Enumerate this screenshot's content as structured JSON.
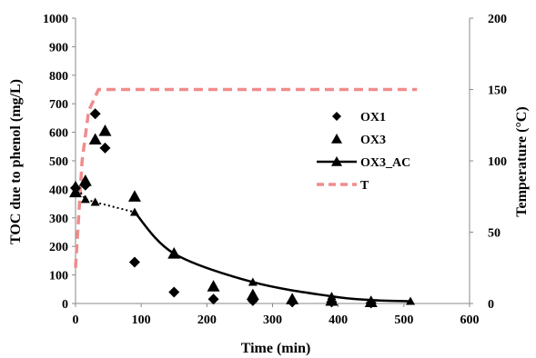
{
  "chart_data": {
    "type": "scatter",
    "x_axis": {
      "label": "Time (min)",
      "range": [
        0,
        600
      ],
      "ticks": [
        0,
        100,
        200,
        300,
        400,
        500,
        600
      ],
      "tick_labels": [
        "0",
        "100",
        "200",
        "300",
        "400",
        "500",
        "600"
      ]
    },
    "y_axis_left": {
      "label": "TOC due to phenol (mg/L)",
      "range": [
        0,
        1000
      ],
      "ticks": [
        0,
        100,
        200,
        300,
        400,
        500,
        600,
        700,
        800,
        900,
        1000
      ],
      "tick_labels": [
        "0",
        "100",
        "200",
        "300",
        "400",
        "500",
        "600",
        "700",
        "800",
        "900",
        "1000"
      ]
    },
    "y_axis_right": {
      "label": "Temperature (°C)",
      "range": [
        0,
        200
      ],
      "ticks": [
        0,
        50,
        100,
        150,
        200
      ],
      "tick_labels": [
        "0",
        "50",
        "100",
        "150",
        "200"
      ]
    },
    "grid": false,
    "legend_position": "right",
    "series": [
      {
        "name": "OX1",
        "style": "diamond-markers",
        "axis": "left",
        "color": "#000000",
        "points": [
          [
            0,
            405
          ],
          [
            15,
            415
          ],
          [
            30,
            665
          ],
          [
            45,
            545
          ],
          [
            90,
            145
          ],
          [
            150,
            40
          ],
          [
            210,
            15
          ],
          [
            270,
            10
          ],
          [
            330,
            5
          ],
          [
            390,
            5
          ],
          [
            450,
            2
          ]
        ]
      },
      {
        "name": "OX3",
        "style": "triangle-markers",
        "axis": "left",
        "color": "#000000",
        "points": [
          [
            0,
            390
          ],
          [
            15,
            430
          ],
          [
            30,
            575
          ],
          [
            45,
            605
          ],
          [
            90,
            375
          ],
          [
            150,
            175
          ],
          [
            210,
            60
          ],
          [
            270,
            30
          ],
          [
            330,
            15
          ],
          [
            390,
            10
          ],
          [
            450,
            5
          ]
        ]
      },
      {
        "name": "OX3_AC",
        "style": "solid-line-triangle-markers",
        "axis": "left",
        "color": "#000000",
        "points": [
          [
            0,
            415
          ],
          [
            15,
            365
          ],
          [
            30,
            355
          ],
          [
            90,
            320
          ],
          [
            150,
            175
          ],
          [
            270,
            75
          ],
          [
            390,
            25
          ],
          [
            450,
            12
          ],
          [
            510,
            8
          ]
        ],
        "dotted_until_x": 90
      },
      {
        "name": "T",
        "style": "dashed-line",
        "axis": "right",
        "color": "#f08c8c",
        "points": [
          [
            0,
            25
          ],
          [
            10,
            100
          ],
          [
            20,
            135
          ],
          [
            35,
            150
          ],
          [
            520,
            150
          ]
        ]
      }
    ]
  }
}
